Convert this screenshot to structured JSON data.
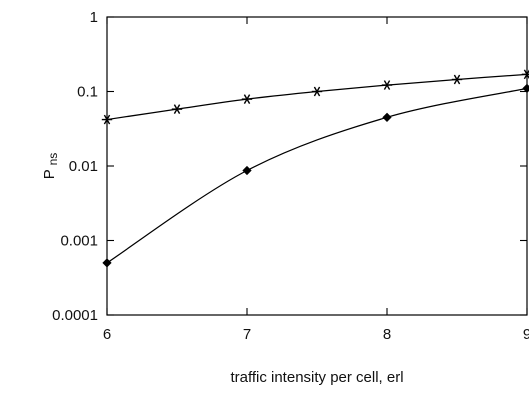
{
  "chart_data": {
    "type": "line",
    "title": "",
    "xlabel": "traffic intensity per cell, erl",
    "ylabel": "P",
    "ylabel_subscript": "ns",
    "x_scale": "linear",
    "y_scale": "log",
    "xlim": [
      6,
      9
    ],
    "ylim": [
      0.0001,
      1
    ],
    "x_ticks": [
      6,
      7,
      8,
      9
    ],
    "x_tick_labels": [
      "6",
      "7",
      "8",
      "9"
    ],
    "y_ticks": [
      0.0001,
      0.001,
      0.01,
      0.1,
      1
    ],
    "y_tick_labels": [
      "0.0001",
      "0.001",
      "0.01",
      "0.1",
      "1"
    ],
    "grid": false,
    "legend": "none",
    "series": [
      {
        "marker": "star",
        "x": [
          6,
          6.5,
          7,
          7.5,
          8,
          8.5,
          9
        ],
        "y": [
          0.042,
          0.058,
          0.079,
          0.1,
          0.122,
          0.145,
          0.17
        ]
      },
      {
        "marker": "diamond",
        "x": [
          6,
          7,
          8,
          9
        ],
        "y": [
          0.0005,
          0.0087,
          0.045,
          0.11
        ]
      }
    ]
  }
}
